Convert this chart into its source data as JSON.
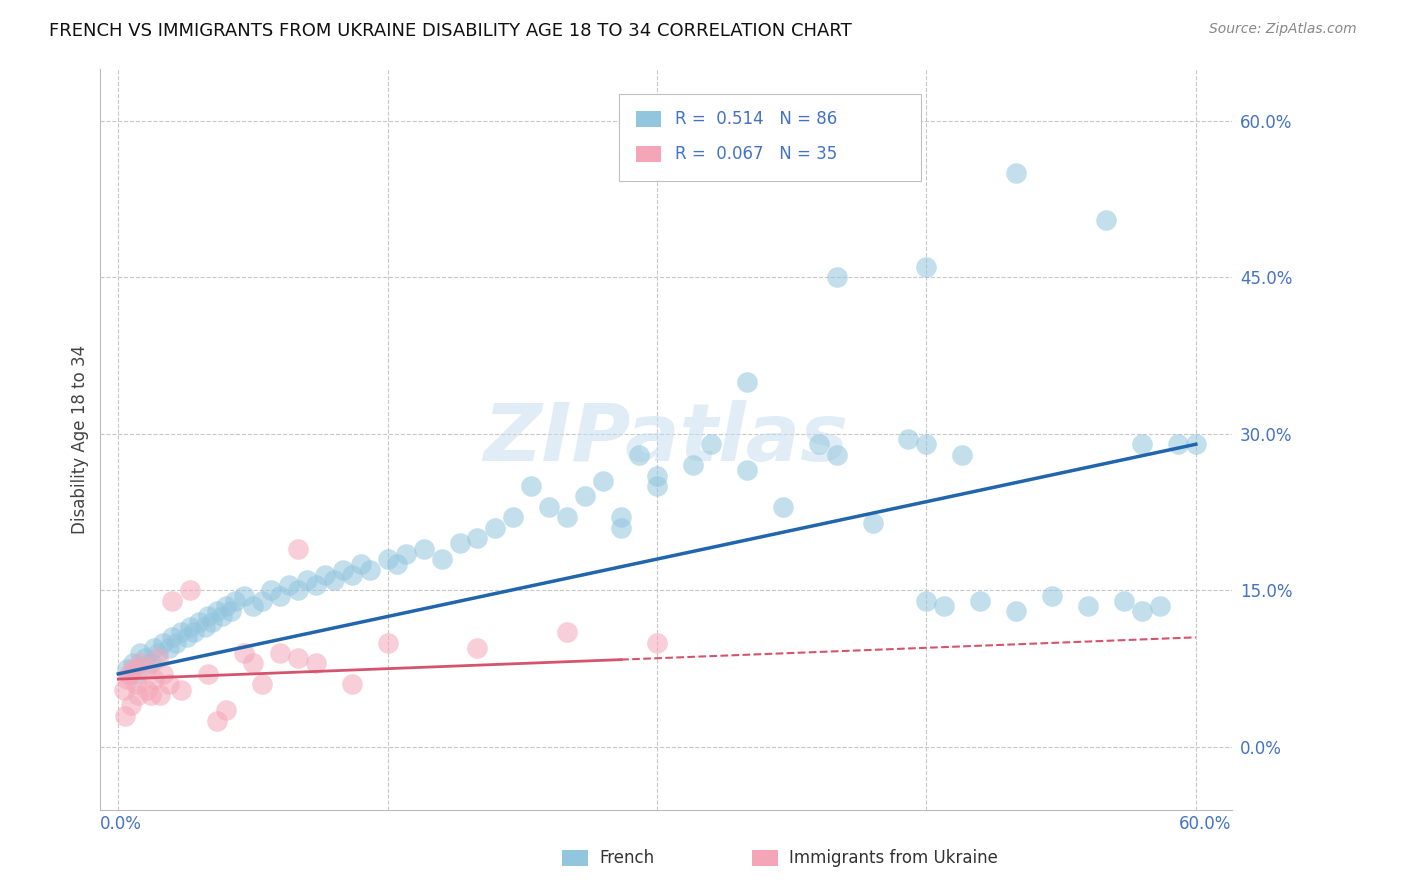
{
  "title": "FRENCH VS IMMIGRANTS FROM UKRAINE DISABILITY AGE 18 TO 34 CORRELATION CHART",
  "source": "Source: ZipAtlas.com",
  "ylabel": "Disability Age 18 to 34",
  "ytick_labels": [
    "0.0%",
    "15.0%",
    "30.0%",
    "45.0%",
    "60.0%"
  ],
  "ytick_values": [
    0,
    15,
    30,
    45,
    60
  ],
  "xtick_labels": [
    "0.0%",
    "60.0%"
  ],
  "xlim": [
    0,
    60
  ],
  "ylim": [
    0,
    60
  ],
  "blue_R": "0.514",
  "blue_N": "86",
  "pink_R": "0.067",
  "pink_N": "35",
  "blue_color": "#92c5de",
  "pink_color": "#f4a6b8",
  "blue_line_color": "#2166ac",
  "pink_line_color": "#d6536d",
  "watermark": "ZIPatlas",
  "blue_line_x0": 0,
  "blue_line_y0": 7.0,
  "blue_line_x1": 60,
  "blue_line_y1": 29.0,
  "pink_line_x0": 0,
  "pink_line_y0": 6.5,
  "pink_line_x1": 60,
  "pink_line_y1": 10.5,
  "pink_solid_end": 28,
  "blue_x": [
    0.5,
    0.8,
    1.0,
    1.2,
    1.5,
    1.8,
    2.0,
    2.2,
    2.5,
    2.8,
    3.0,
    3.2,
    3.5,
    3.8,
    4.0,
    4.2,
    4.5,
    4.8,
    5.0,
    5.2,
    5.5,
    5.8,
    6.0,
    6.3,
    6.5,
    7.0,
    7.5,
    8.0,
    8.5,
    9.0,
    9.5,
    10.0,
    10.5,
    11.0,
    11.5,
    12.0,
    12.5,
    13.0,
    13.5,
    14.0,
    15.0,
    15.5,
    16.0,
    17.0,
    18.0,
    19.0,
    20.0,
    21.0,
    22.0,
    23.0,
    24.0,
    25.0,
    26.0,
    27.0,
    28.0,
    29.0,
    30.0,
    32.0,
    33.0,
    35.0,
    37.0,
    39.0,
    40.0,
    42.0,
    44.0,
    45.0,
    46.0,
    48.0,
    50.0,
    52.0,
    54.0,
    56.0,
    57.0,
    58.0,
    59.0,
    60.0,
    35.0,
    40.0,
    45.0,
    50.0,
    55.0,
    57.0,
    45.0,
    47.0,
    30.0,
    28.0
  ],
  "blue_y": [
    7.5,
    8.0,
    7.0,
    9.0,
    8.5,
    8.0,
    9.5,
    9.0,
    10.0,
    9.5,
    10.5,
    10.0,
    11.0,
    10.5,
    11.5,
    11.0,
    12.0,
    11.5,
    12.5,
    12.0,
    13.0,
    12.5,
    13.5,
    13.0,
    14.0,
    14.5,
    13.5,
    14.0,
    15.0,
    14.5,
    15.5,
    15.0,
    16.0,
    15.5,
    16.5,
    16.0,
    17.0,
    16.5,
    17.5,
    17.0,
    18.0,
    17.5,
    18.5,
    19.0,
    18.0,
    19.5,
    20.0,
    21.0,
    22.0,
    25.0,
    23.0,
    22.0,
    24.0,
    25.5,
    21.0,
    28.0,
    26.0,
    27.0,
    29.0,
    26.5,
    23.0,
    29.0,
    28.0,
    21.5,
    29.5,
    14.0,
    13.5,
    14.0,
    13.0,
    14.5,
    13.5,
    14.0,
    13.0,
    13.5,
    29.0,
    29.0,
    35.0,
    45.0,
    46.0,
    55.0,
    50.5,
    29.0,
    29.0,
    28.0,
    25.0,
    22.0
  ],
  "pink_x": [
    0.3,
    0.5,
    0.6,
    0.8,
    1.0,
    1.2,
    1.5,
    1.8,
    2.0,
    2.2,
    2.5,
    2.8,
    3.0,
    4.0,
    5.0,
    6.0,
    7.0,
    8.0,
    9.0,
    10.0,
    11.0,
    13.0,
    15.0,
    20.0,
    25.0,
    30.0,
    0.4,
    0.7,
    1.1,
    1.6,
    2.3,
    3.5,
    5.5,
    7.5,
    10.0
  ],
  "pink_y": [
    5.5,
    6.5,
    7.0,
    7.5,
    6.0,
    8.0,
    7.5,
    5.0,
    6.5,
    8.5,
    7.0,
    6.0,
    14.0,
    15.0,
    7.0,
    3.5,
    9.0,
    6.0,
    9.0,
    19.0,
    8.0,
    6.0,
    10.0,
    9.5,
    11.0,
    10.0,
    3.0,
    4.0,
    5.0,
    5.5,
    5.0,
    5.5,
    2.5,
    8.0,
    8.5
  ]
}
